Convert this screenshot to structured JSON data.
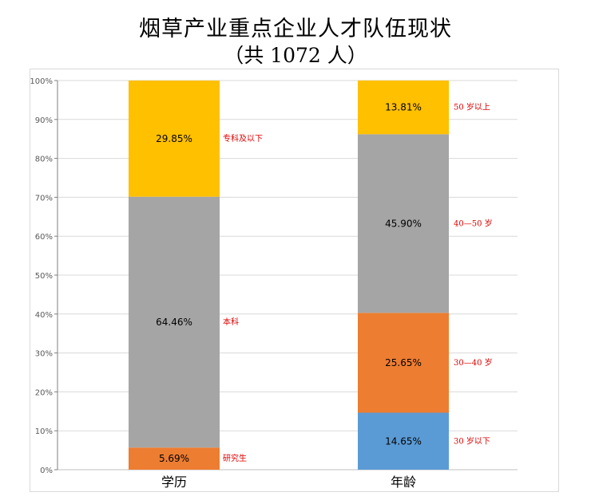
{
  "title_line1": "烟草产业重点企业人才队伍现状",
  "title_line2": "（共 1072 人）",
  "chart_data": {
    "type": "bar",
    "stacked": true,
    "percent": true,
    "ylim": [
      0,
      100
    ],
    "yticks": [
      "0%",
      "10%",
      "20%",
      "30%",
      "40%",
      "50%",
      "60%",
      "70%",
      "80%",
      "90%",
      "100%"
    ],
    "grid": true,
    "categories": [
      "学历",
      "年龄"
    ],
    "bars": [
      {
        "category": "学历",
        "segments": [
          {
            "label": "研究生",
            "value": 5.69,
            "value_label": "5.69%",
            "color": "#ED7D31"
          },
          {
            "label": "本科",
            "value": 64.46,
            "value_label": "64.46%",
            "color": "#A5A5A5"
          },
          {
            "label": "专科及以下",
            "value": 29.85,
            "value_label": "29.85%",
            "color": "#FFC000"
          }
        ]
      },
      {
        "category": "年龄",
        "segments": [
          {
            "label": "30 岁以下",
            "value": 14.65,
            "value_label": "14.65%",
            "color": "#5B9BD5"
          },
          {
            "label": "30—40 岁",
            "value": 25.65,
            "value_label": "25.65%",
            "color": "#ED7D31"
          },
          {
            "label": "40—50 岁",
            "value": 45.9,
            "value_label": "45.90%",
            "color": "#A5A5A5"
          },
          {
            "label": "50 岁以上",
            "value": 13.81,
            "value_label": "13.81%",
            "color": "#FFC000"
          }
        ]
      }
    ]
  }
}
